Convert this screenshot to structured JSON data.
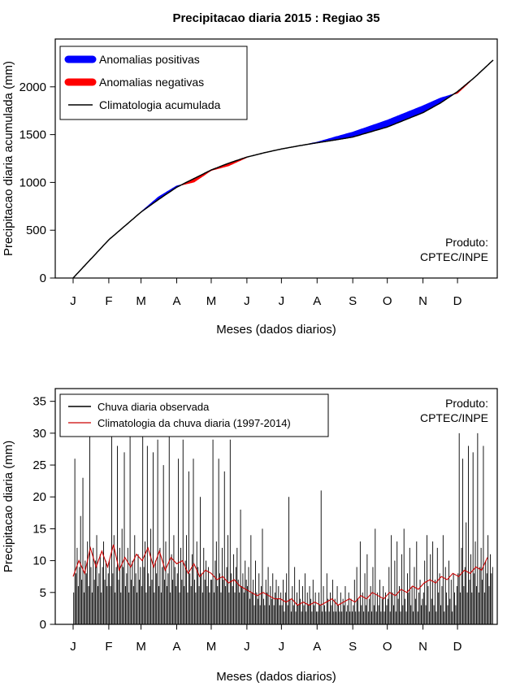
{
  "figure": {
    "background": "#FFFFFF"
  },
  "chart_data": [
    {
      "type": "area",
      "title": "Precipitacao diaria 2015 : Regiao 35",
      "xlabel": "Meses (dados diarios)",
      "ylabel": "Precipitacao diaria acumulada (mm)",
      "x_tick_labels": [
        "J",
        "F",
        "M",
        "A",
        "M",
        "J",
        "J",
        "A",
        "S",
        "O",
        "N",
        "D"
      ],
      "month_start_days": [
        0,
        31,
        59,
        90,
        120,
        151,
        181,
        212,
        243,
        273,
        304,
        334
      ],
      "y_ticks": [
        0,
        500,
        1000,
        1500,
        2000
      ],
      "ylim": [
        0,
        2500
      ],
      "legend": [
        {
          "label": "Anomalias positivas",
          "color": "#0000FF"
        },
        {
          "label": "Anomalias negativas",
          "color": "#FF0000"
        },
        {
          "label": "Climatologia acumulada",
          "color": "#000000"
        }
      ],
      "annotation": [
        "Produto:",
        "CPTEC/INPE"
      ],
      "colors": {
        "positive": "#0000FF",
        "negative": "#FF0000",
        "line": "#000000"
      },
      "series": {
        "days": [
          0,
          31,
          59,
          74,
          90,
          105,
          120,
          135,
          151,
          166,
          181,
          197,
          212,
          228,
          243,
          273,
          304,
          319,
          334,
          349,
          365
        ],
        "climatologia_acumulada": [
          0,
          400,
          690,
          820,
          950,
          1040,
          1130,
          1200,
          1265,
          1310,
          1350,
          1385,
          1415,
          1445,
          1475,
          1580,
          1730,
          1830,
          1950,
          2100,
          2280
        ],
        "observado_acumulado": [
          0,
          400,
          690,
          845,
          962,
          1005,
          1127,
          1175,
          1263,
          1308,
          1348,
          1385,
          1420,
          1475,
          1525,
          1650,
          1800,
          1880,
          1935,
          2102,
          2280
        ]
      }
    },
    {
      "type": "bar",
      "xlabel": "Meses (dados diarios)",
      "ylabel": "Precipitacao diaria (mm)",
      "x_tick_labels": [
        "J",
        "F",
        "M",
        "A",
        "M",
        "J",
        "J",
        "A",
        "S",
        "O",
        "N",
        "D"
      ],
      "month_start_days": [
        0,
        31,
        59,
        90,
        120,
        151,
        181,
        212,
        243,
        273,
        304,
        334
      ],
      "y_ticks": [
        0,
        5,
        10,
        15,
        20,
        25,
        30,
        35
      ],
      "ylim": [
        0,
        37
      ],
      "legend": [
        {
          "label": "Chuva diaria observada",
          "color": "#000000"
        },
        {
          "label": "Climatologia da chuva diaria (1997-2014)",
          "color": "#CC0000"
        }
      ],
      "annotation": [
        "Produto:",
        "CPTEC/INPE"
      ],
      "colors": {
        "observed": "#000000",
        "climatology": "#CC0000"
      },
      "observed_daily": [
        [
          5,
          26,
          8,
          12,
          6,
          9,
          17,
          7,
          23,
          5,
          10,
          8,
          13,
          6,
          30,
          9,
          5,
          12,
          7,
          10,
          14,
          6,
          8,
          11,
          5,
          9,
          13,
          7,
          10,
          6,
          8
        ],
        [
          10,
          6,
          31,
          8,
          14,
          5,
          9,
          28,
          7,
          12,
          5,
          15,
          9,
          27,
          6,
          8,
          12,
          5,
          30,
          7,
          10,
          6,
          14,
          8,
          5,
          11,
          7,
          9
        ],
        [
          6,
          31,
          9,
          13,
          5,
          28,
          8,
          6,
          15,
          7,
          27,
          5,
          10,
          8,
          29,
          6,
          12,
          5,
          9,
          25,
          7,
          13,
          6,
          8,
          30,
          5,
          11,
          7,
          14,
          9,
          6
        ],
        [
          8,
          26,
          5,
          12,
          7,
          29,
          6,
          10,
          14,
          5,
          24,
          8,
          6,
          11,
          26,
          7,
          5,
          13,
          9,
          6,
          20,
          8,
          5,
          12,
          7,
          10,
          6,
          9,
          5,
          7
        ],
        [
          7,
          29,
          5,
          10,
          13,
          6,
          26,
          8,
          5,
          12,
          7,
          24,
          6,
          9,
          14,
          5,
          29,
          8,
          6,
          11,
          5,
          9,
          12,
          7,
          5,
          18,
          6,
          8,
          5,
          10,
          7
        ],
        [
          6,
          9,
          4,
          14,
          5,
          7,
          3,
          10,
          5,
          4,
          8,
          3,
          6,
          15,
          4,
          3,
          7,
          5,
          9,
          3,
          6,
          4,
          8,
          3,
          5,
          7,
          4,
          6,
          3,
          5
        ],
        [
          3,
          7,
          2,
          5,
          8,
          3,
          20,
          4,
          2,
          6,
          3,
          9,
          2,
          5,
          3,
          7,
          4,
          2,
          6,
          3,
          8,
          2,
          5,
          3,
          6,
          4,
          2,
          7,
          3,
          5,
          2
        ],
        [
          2,
          5,
          3,
          21,
          2,
          6,
          3,
          2,
          8,
          4,
          2,
          5,
          3,
          7,
          2,
          4,
          2,
          6,
          3,
          2,
          5,
          2,
          4,
          3,
          6,
          2,
          3,
          5,
          2,
          4,
          2
        ],
        [
          3,
          7,
          2,
          9,
          4,
          2,
          13,
          3,
          5,
          2,
          8,
          3,
          11,
          2,
          4,
          6,
          2,
          9,
          3,
          15,
          2,
          5,
          3,
          7,
          2,
          4,
          6,
          2,
          5,
          3
        ],
        [
          4,
          9,
          2,
          14,
          5,
          3,
          10,
          2,
          13,
          4,
          6,
          2,
          11,
          3,
          15,
          4,
          2,
          8,
          5,
          12,
          3,
          6,
          2,
          9,
          4,
          13,
          2,
          5,
          7,
          3,
          4
        ],
        [
          5,
          10,
          3,
          14,
          6,
          2,
          11,
          4,
          13,
          3,
          7,
          2,
          12,
          5,
          8,
          3,
          6,
          14,
          2,
          9,
          5,
          3,
          10,
          4,
          7,
          2,
          8,
          5,
          3,
          6
        ],
        [
          8,
          30,
          5,
          12,
          26,
          6,
          9,
          16,
          5,
          28,
          7,
          11,
          5,
          27,
          8,
          13,
          6,
          30,
          5,
          9,
          12,
          7,
          28,
          5,
          10,
          8,
          14,
          6,
          11,
          8,
          9
        ]
      ],
      "climatology_step_days": 5,
      "climatology_daily": [
        7.5,
        10,
        8,
        12,
        9,
        11.5,
        9,
        12.5,
        8.5,
        10.5,
        9,
        11,
        10,
        12,
        9,
        11.5,
        8.5,
        10.5,
        9.5,
        10,
        8,
        9.5,
        7.5,
        8.5,
        8,
        7,
        7.5,
        6.5,
        7,
        6,
        5.5,
        5,
        4.5,
        5,
        4.5,
        4,
        4,
        3.5,
        4,
        3,
        3.5,
        3,
        3.5,
        3,
        3.5,
        4,
        3,
        3.5,
        4,
        3.5,
        4.5,
        4,
        5,
        4.5,
        4,
        5,
        4.5,
        5.5,
        5,
        6,
        5.5,
        6.5,
        7,
        6.5,
        7.5,
        7,
        8,
        7.5,
        8.5,
        8,
        9,
        8.5,
        10.5
      ]
    }
  ]
}
